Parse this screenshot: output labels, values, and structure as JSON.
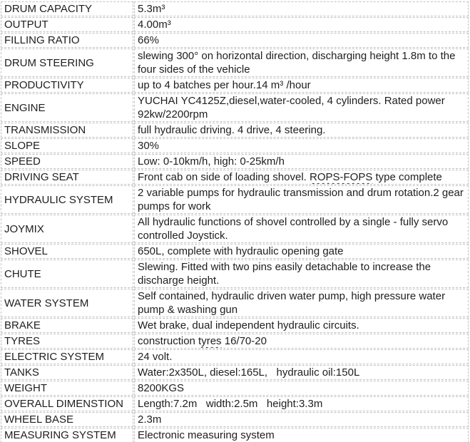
{
  "colors": {
    "border": "#c2c2c2",
    "text": "#1e1e1e",
    "squiggle": "#cc0000",
    "background": "#ffffff"
  },
  "table": {
    "rows": [
      {
        "label": "DRUM CAPACITY",
        "value": "5.3m³"
      },
      {
        "label": "OUTPUT",
        "value": "4.00m³"
      },
      {
        "label": "FILLING RATIO",
        "value": "66%"
      },
      {
        "label": "DRUM STEERING",
        "value": "slewing 300° on horizontal direction, discharging height 1.8m to the four sides of the vehicle"
      },
      {
        "label": "PRODUCTIVITY",
        "value": "up to 4 batches per hour.14 m³ /hour"
      },
      {
        "label": "ENGINE",
        "value": "YUCHAI YC4125Z,diesel,water-cooled, 4 cylinders. Rated power 92kw/2200rpm"
      },
      {
        "label": "TRANSMISSION",
        "value": "full hydraulic driving. 4 drive, 4 steering."
      },
      {
        "label": "SLOPE",
        "value": "30%"
      },
      {
        "label": "SPEED",
        "value": "Low: 0-10km/h, high: 0-25km/h"
      },
      {
        "label": "DRIVING SEAT",
        "parts": [
          {
            "text": "Front cab on side of loading shovel. "
          },
          {
            "text": "ROPS-FOPS",
            "squiggle": true
          },
          {
            "text": " type complete"
          }
        ]
      },
      {
        "label": "HYDRAULIC SYSTEM",
        "value": "2 variable pumps for hydraulic transmission and drum rotation.2 gear pumps for work"
      },
      {
        "label": "JOYMIX",
        "value": "All hydraulic functions of shovel controlled by a single - fully servo controlled Joystick."
      },
      {
        "label": "SHOVEL",
        "value": "650L, complete with hydraulic opening gate"
      },
      {
        "label": "CHUTE",
        "value": "Slewing. Fitted with two pins easily detachable to increase the discharge height."
      },
      {
        "label": "WATER SYSTEM",
        "value": "Self contained, hydraulic driven water pump, high pressure water pump & washing gun"
      },
      {
        "label": "BRAKE",
        "value": "Wet brake, dual independent hydraulic circuits."
      },
      {
        "label": "TYRES",
        "parts": [
          {
            "text": "construction "
          },
          {
            "text": "tyres",
            "squiggle": true
          },
          {
            "text": " 16/70-20"
          }
        ]
      },
      {
        "label": "ELECTRIC SYSTEM",
        "value": "24 volt."
      },
      {
        "label": "TANKS",
        "value": "Water:2x350L, diesel:165L,   hydraulic oil:150L"
      },
      {
        "label": "WEIGHT",
        "value": "8200KGS"
      },
      {
        "label": "OVERALL DIMENSTION",
        "value": "Length:7.2m   width:2.5m   height:3.3m"
      },
      {
        "label": "WHEEL BASE",
        "value": "2.3m"
      },
      {
        "label": "MEASURING SYSTEM",
        "value": "Electronic measuring system"
      }
    ]
  }
}
